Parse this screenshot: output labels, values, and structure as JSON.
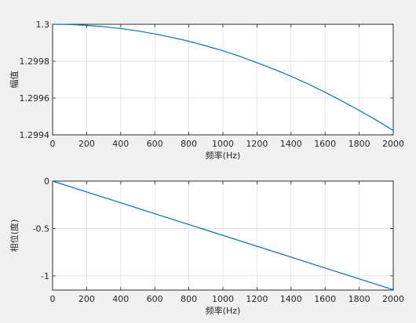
{
  "chart_data": [
    {
      "type": "line",
      "xlabel": "频率(Hz)",
      "ylabel": "幅值",
      "xlim": [
        0,
        2000
      ],
      "ylim": [
        1.2994,
        1.3
      ],
      "xticks": [
        "0",
        "200",
        "400",
        "600",
        "800",
        "1000",
        "1200",
        "1400",
        "1600",
        "1800",
        "2000"
      ],
      "yticks": [
        "1.3",
        "1.2998",
        "1.2996",
        "1.2994"
      ],
      "grid": true,
      "series": [
        {
          "color": "#0072bd",
          "x": [
            0,
            100,
            200,
            300,
            400,
            500,
            600,
            700,
            800,
            900,
            1000,
            1100,
            1200,
            1300,
            1400,
            1500,
            1600,
            1700,
            1800,
            1900,
            2000
          ],
          "y": [
            1.3,
            1.299999,
            1.299994,
            1.299987,
            1.299977,
            1.299964,
            1.299948,
            1.299929,
            1.299908,
            1.299883,
            1.299856,
            1.299826,
            1.299792,
            1.299756,
            1.299718,
            1.299676,
            1.299631,
            1.299583,
            1.299533,
            1.29948,
            1.299424
          ]
        }
      ]
    },
    {
      "type": "line",
      "xlabel": "频率(Hz)",
      "ylabel": "相位(度)",
      "xlim": [
        0,
        2000
      ],
      "ylim": [
        -1.15,
        0
      ],
      "xticks": [
        "0",
        "200",
        "400",
        "600",
        "800",
        "1000",
        "1200",
        "1400",
        "1600",
        "1800",
        "2000"
      ],
      "yticks": [
        "0",
        "-0.5",
        "-1"
      ],
      "grid": true,
      "series": [
        {
          "color": "#0072bd",
          "x": [
            0,
            2000
          ],
          "y": [
            0,
            -1.146
          ]
        }
      ]
    }
  ]
}
